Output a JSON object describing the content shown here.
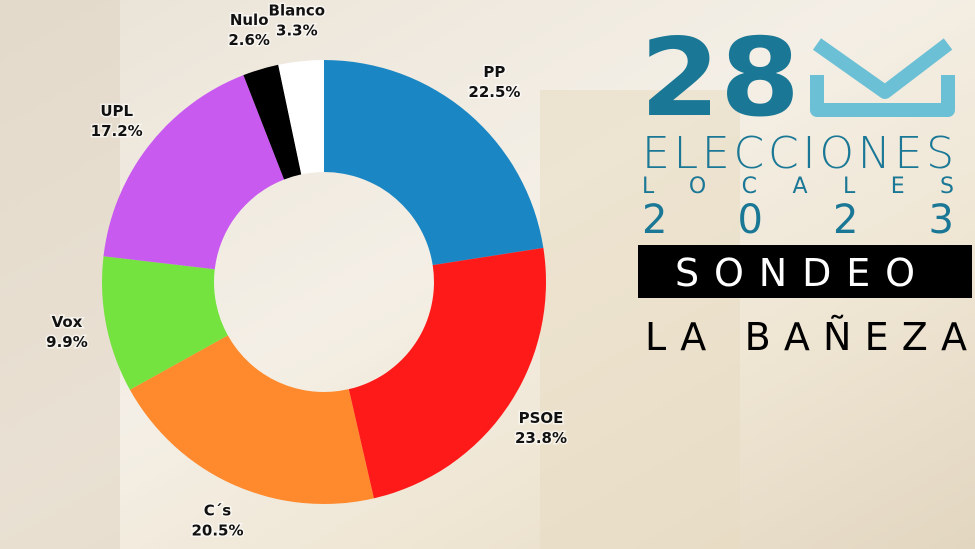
{
  "chart_data": {
    "type": "donut",
    "categories": [
      "PP",
      "PSOE",
      "C´s",
      "Vox",
      "UPL",
      "Nulo",
      "Blanco"
    ],
    "values": [
      22.5,
      23.8,
      20.5,
      9.9,
      17.2,
      2.6,
      3.3
    ],
    "value_labels": [
      "22.5%",
      "23.8%",
      "20.5%",
      "9.9%",
      "17.2%",
      "2.6%",
      "3.3%"
    ],
    "colors": [
      "#1a87c4",
      "#ff1a1a",
      "#ff8a2e",
      "#74e23f",
      "#c85af0",
      "#000000",
      "#ffffff"
    ]
  },
  "header": {
    "number": "28",
    "line1": "ELECCIONES",
    "line2": "LOCALES",
    "line3": "2023",
    "badge": "SONDEO",
    "place": "LA BAÑEZA"
  }
}
